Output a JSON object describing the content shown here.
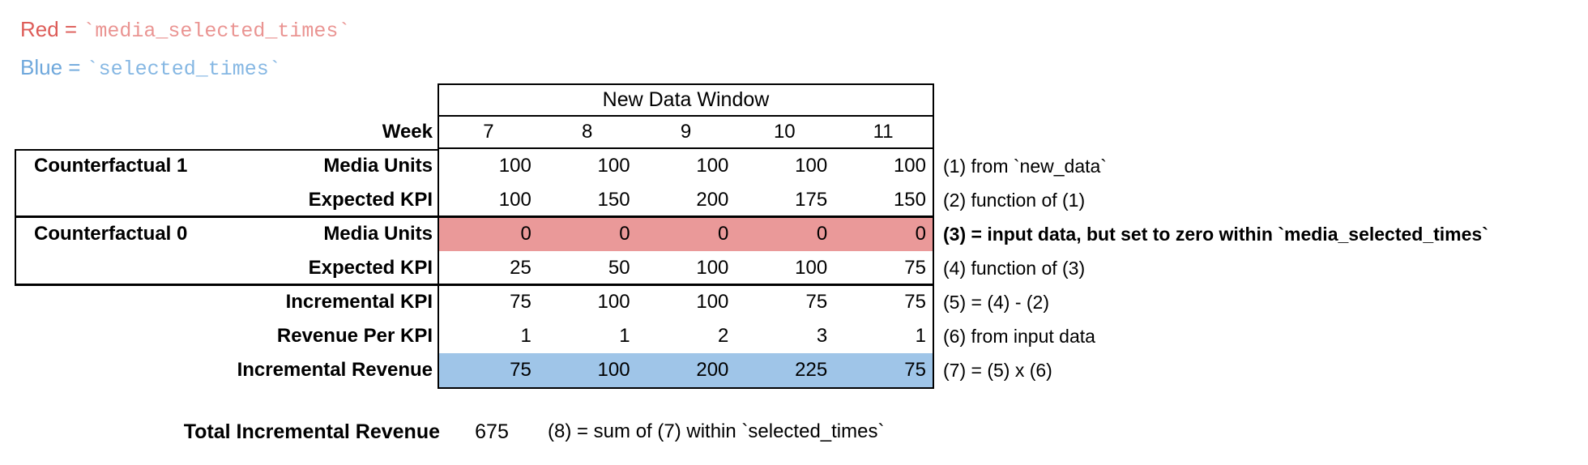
{
  "legend": {
    "red": {
      "label": "Red = ",
      "code": "`media_selected_times`",
      "label_color": "#dd5c58",
      "code_color": "#ea9492"
    },
    "blue": {
      "label": "Blue = ",
      "code": "`selected_times`",
      "label_color": "#6fa8dc",
      "code_color": "#85b7e3"
    }
  },
  "table": {
    "window_title": "New Data Window",
    "week_label": "Week",
    "weeks": [
      "7",
      "8",
      "9",
      "10",
      "11"
    ],
    "groups": [
      {
        "label": "Counterfactual 1"
      },
      {
        "label": "Counterfactual 0"
      }
    ],
    "highlight_colors": {
      "red": "#ea9999",
      "blue": "#9fc5e8"
    },
    "rows": [
      {
        "label": "Media Units",
        "values": [
          "100",
          "100",
          "100",
          "100",
          "100"
        ],
        "annotation": "(1) from `new_data`"
      },
      {
        "label": "Expected KPI",
        "values": [
          "100",
          "150",
          "200",
          "175",
          "150"
        ],
        "annotation": "(2) function of (1)"
      },
      {
        "label": "Media Units",
        "values": [
          "0",
          "0",
          "0",
          "0",
          "0"
        ],
        "annotation": "(3) = input data, but set to zero within `media_selected_times`"
      },
      {
        "label": "Expected KPI",
        "values": [
          "25",
          "50",
          "100",
          "100",
          "75"
        ],
        "annotation": "(4) function of (3)"
      },
      {
        "label": "Incremental KPI",
        "values": [
          "75",
          "100",
          "100",
          "75",
          "75"
        ],
        "annotation": "(5) = (4) - (2)"
      },
      {
        "label": "Revenue Per KPI",
        "values": [
          "1",
          "1",
          "2",
          "3",
          "1"
        ],
        "annotation": "(6) from input data"
      },
      {
        "label": "Incremental Revenue",
        "values": [
          "75",
          "100",
          "200",
          "225",
          "75"
        ],
        "annotation": "(7) = (5) x (6)"
      }
    ]
  },
  "total": {
    "label": "Total Incremental Revenue",
    "value": "675",
    "annotation": "(8) = sum of (7) within `selected_times`"
  }
}
